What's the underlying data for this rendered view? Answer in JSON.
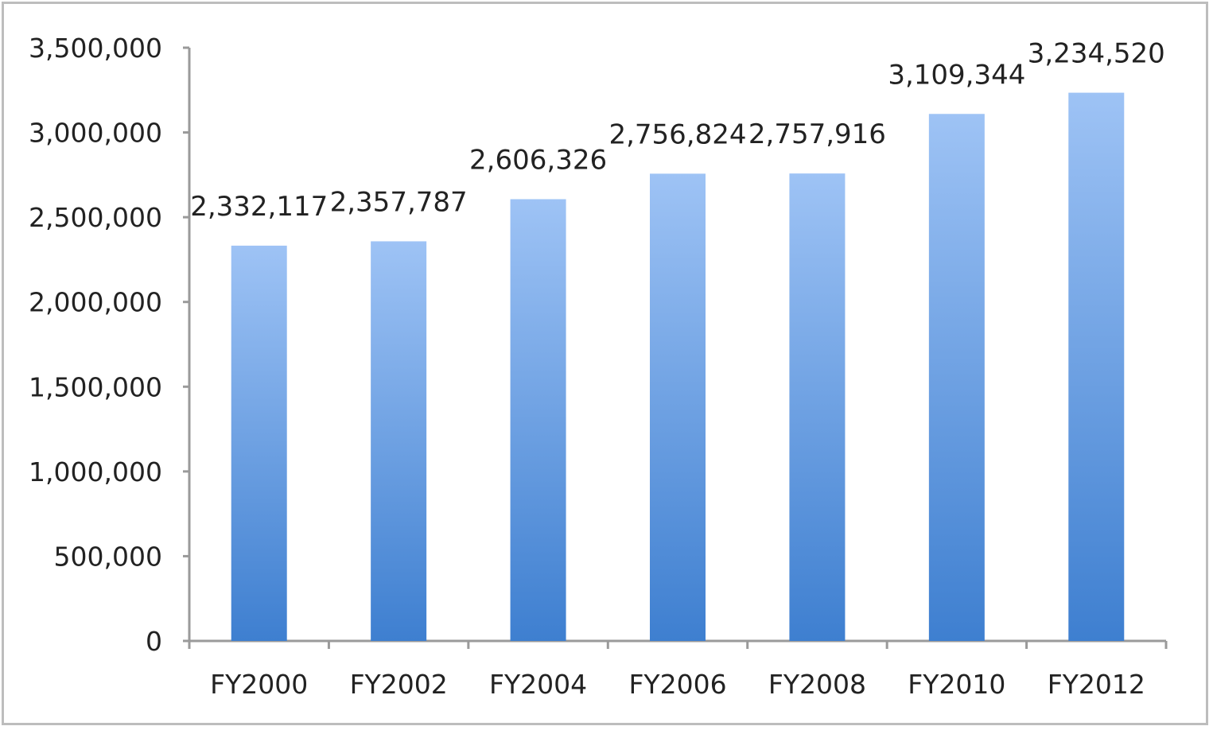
{
  "chart_data": {
    "type": "bar",
    "categories": [
      "FY2000",
      "FY2002",
      "FY2004",
      "FY2006",
      "FY2008",
      "FY2010",
      "FY2012"
    ],
    "values": [
      2332117,
      2357787,
      2606326,
      2756824,
      2757916,
      3109344,
      3234520
    ],
    "value_labels": [
      "2,332,117",
      "2,357,787",
      "2,606,326",
      "2,756,824",
      "2,757,916",
      "3,109,344",
      "3,234,520"
    ],
    "title": "",
    "xlabel": "",
    "ylabel": "",
    "ylim": [
      0,
      3500000
    ],
    "yticks": [
      0,
      500000,
      1000000,
      1500000,
      2000000,
      2500000,
      3000000,
      3500000
    ],
    "ytick_labels": [
      "0",
      "500,000",
      "1,000,000",
      "1,500,000",
      "2,000,000",
      "2,500,000",
      "3,000,000",
      "3,500,000"
    ],
    "grid": false,
    "legend": "none",
    "colors": {
      "bar_top": "#9ec3f5",
      "bar_bottom": "#3e7fd0",
      "axis": "#9a9a9a"
    }
  }
}
